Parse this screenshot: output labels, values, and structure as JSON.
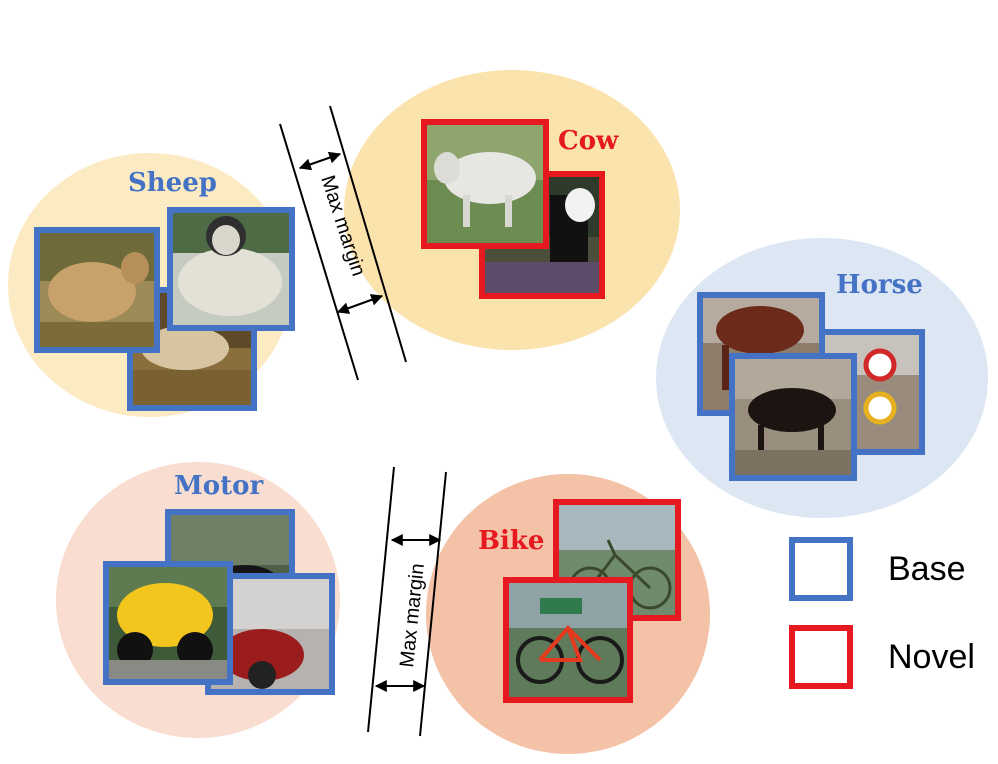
{
  "colors": {
    "base": "#4472c4",
    "novel": "#e5191f",
    "sheep_cow_cluster": "#fbe3ae",
    "horse_cluster": "#dde7f4",
    "motor_cluster": "#f8ddd0",
    "bike_cluster": "#f4c2a6"
  },
  "clusters": {
    "sheep": {
      "label": "Sheep",
      "type": "base"
    },
    "cow": {
      "label": "Cow",
      "type": "novel"
    },
    "horse": {
      "label": "Horse",
      "type": "base"
    },
    "motor": {
      "label": "Motor",
      "type": "base"
    },
    "bike": {
      "label": "Bike",
      "type": "novel"
    }
  },
  "margins": {
    "top": "Max margin",
    "bottom": "Max margin"
  },
  "legend": {
    "base": "Base",
    "novel": "Novel"
  }
}
